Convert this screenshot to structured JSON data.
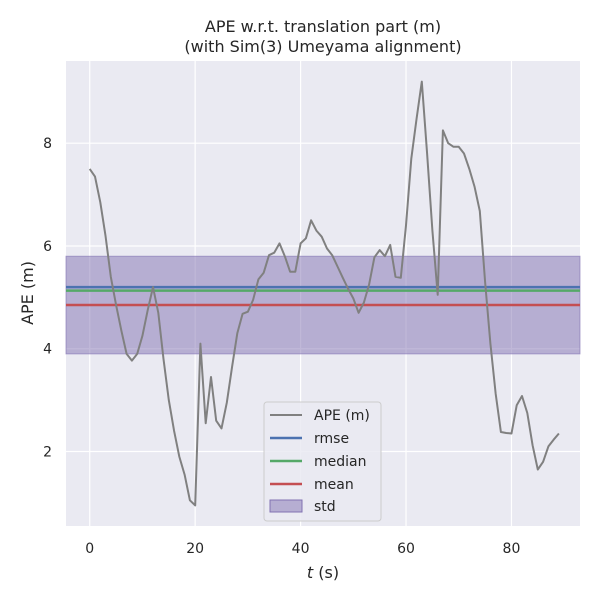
{
  "chart_data": {
    "type": "line",
    "title": "APE w.r.t. translation part (m)",
    "subtitle": "(with Sim(3) Umeyama alignment)",
    "xlabel_var": "t",
    "xlabel_unit": " (s)",
    "ylabel": "APE (m)",
    "xlim": [
      -4.5,
      93
    ],
    "ylim": [
      0.55,
      9.6
    ],
    "xticks": [
      0,
      20,
      40,
      60,
      80
    ],
    "yticks": [
      2,
      4,
      6,
      8
    ],
    "grid": true,
    "legend_position": "lower-center",
    "colors": {
      "background": "#eaeaf2",
      "grid": "#ffffff",
      "ape": "#808080",
      "rmse": "#4c72b0",
      "median": "#55a868",
      "mean": "#c44e52",
      "std": "#8172b2"
    },
    "stats": {
      "rmse": 5.2,
      "median": 5.13,
      "mean": 4.85,
      "std_lower": 3.9,
      "std_upper": 5.8
    },
    "legend": [
      "APE (m)",
      "rmse",
      "median",
      "mean",
      "std"
    ],
    "series": [
      {
        "name": "APE (m)",
        "x": [
          0,
          1,
          2,
          3,
          4,
          5,
          6,
          7,
          8,
          9,
          10,
          11,
          12,
          13,
          14,
          15,
          16,
          17,
          18,
          19,
          20,
          21,
          22,
          23,
          24,
          25,
          26,
          27,
          28,
          29,
          30,
          31,
          32,
          33,
          34,
          35,
          36,
          37,
          38,
          39,
          40,
          41,
          42,
          43,
          44,
          45,
          46,
          47,
          48,
          49,
          50,
          51,
          52,
          53,
          54,
          55,
          56,
          57,
          58,
          59,
          60,
          61,
          62,
          63,
          64,
          65,
          66,
          67,
          68,
          69,
          70,
          71,
          72,
          73,
          74,
          75,
          76,
          77,
          78,
          79,
          80,
          81,
          82,
          83,
          84,
          85,
          86,
          87,
          88,
          89
        ],
        "y": [
          7.5,
          7.35,
          6.85,
          6.2,
          5.4,
          4.85,
          4.35,
          3.9,
          3.77,
          3.9,
          4.25,
          4.75,
          5.2,
          4.7,
          3.8,
          3.0,
          2.4,
          1.9,
          1.55,
          1.05,
          0.95,
          4.1,
          2.55,
          3.45,
          2.6,
          2.45,
          2.95,
          3.65,
          4.3,
          4.68,
          4.72,
          4.95,
          5.35,
          5.48,
          5.82,
          5.87,
          6.05,
          5.8,
          5.5,
          5.5,
          6.05,
          6.15,
          6.5,
          6.3,
          6.18,
          5.95,
          5.82,
          5.6,
          5.38,
          5.17,
          4.98,
          4.7,
          4.9,
          5.25,
          5.78,
          5.92,
          5.8,
          6.02,
          5.4,
          5.38,
          6.4,
          7.7,
          8.48,
          9.2,
          7.8,
          6.3,
          5.05,
          8.25,
          8.0,
          7.93,
          7.93,
          7.8,
          7.5,
          7.15,
          6.68,
          5.3,
          4.1,
          3.12,
          2.38,
          2.36,
          2.35,
          2.9,
          3.08,
          2.75,
          2.12,
          1.65,
          1.8,
          2.1,
          2.23,
          2.35
        ]
      }
    ]
  }
}
